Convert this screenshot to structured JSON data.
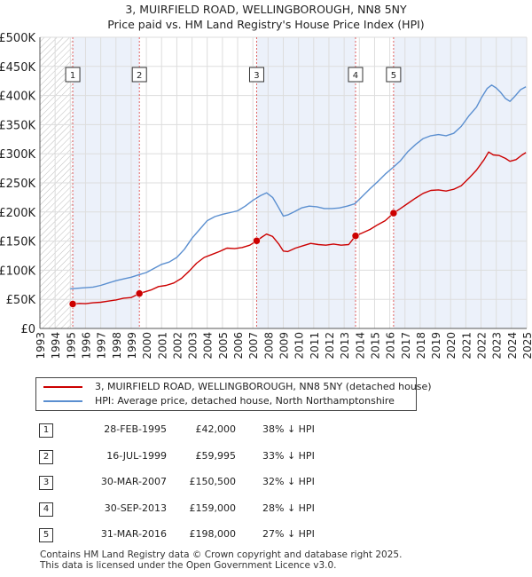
{
  "title": {
    "line1": "3, MUIRFIELD ROAD, WELLINGBOROUGH, NN8 5NY",
    "line2": "Price paid vs. HM Land Registry's House Price Index (HPI)"
  },
  "colors": {
    "property": "#cc0000",
    "hpi": "#5b8fd0",
    "marker_box": "#333333",
    "hatch": "#bbbbbb",
    "band": "#dde6f5"
  },
  "chart_data": {
    "type": "line",
    "title": "Price paid vs. HM Land Registry's House Price Index (HPI)",
    "xlabel": "",
    "ylabel": "",
    "xlim": [
      1993,
      2025
    ],
    "ylim": [
      0,
      500000
    ],
    "yticks": [
      0,
      50000,
      100000,
      150000,
      200000,
      250000,
      300000,
      350000,
      400000,
      450000,
      500000
    ],
    "ytick_labels": [
      "£0",
      "£50K",
      "£100K",
      "£150K",
      "£200K",
      "£250K",
      "£300K",
      "£350K",
      "£400K",
      "£450K",
      "£500K"
    ],
    "xticks": [
      "1993",
      "1994",
      "1995",
      "1996",
      "1997",
      "1998",
      "1999",
      "2000",
      "2001",
      "2002",
      "2003",
      "2004",
      "2005",
      "2006",
      "2007",
      "2008",
      "2009",
      "2010",
      "2011",
      "2012",
      "2013",
      "2014",
      "2015",
      "2016",
      "2017",
      "2018",
      "2019",
      "2020",
      "2021",
      "2022",
      "2023",
      "2024",
      "2025"
    ],
    "grid": true,
    "series": [
      {
        "name": "3, MUIRFIELD ROAD, WELLINGBOROUGH, NN8 5NY (detached house)",
        "x": [
          1995.16,
          1995.6,
          1996.0,
          1996.5,
          1997.0,
          1997.5,
          1998.0,
          1998.5,
          1999.0,
          1999.54,
          1999.8,
          2000.3,
          2000.8,
          2001.3,
          2001.8,
          2002.3,
          2002.8,
          2003.3,
          2003.8,
          2004.3,
          2004.8,
          2005.3,
          2005.8,
          2006.3,
          2006.8,
          2007.25,
          2007.6,
          2007.9,
          2008.3,
          2008.7,
          2009.0,
          2009.3,
          2009.8,
          2010.3,
          2010.8,
          2011.3,
          2011.8,
          2012.3,
          2012.8,
          2013.3,
          2013.75,
          2014.2,
          2014.7,
          2015.2,
          2015.7,
          2016.25,
          2016.7,
          2017.2,
          2017.7,
          2018.2,
          2018.7,
          2019.2,
          2019.7,
          2020.2,
          2020.7,
          2021.2,
          2021.7,
          2022.2,
          2022.5,
          2022.8,
          2023.2,
          2023.6,
          2023.9,
          2024.3,
          2024.7,
          2024.95
        ],
        "values": [
          42000,
          43000,
          42500,
          44000,
          45000,
          47000,
          49000,
          52000,
          53000,
          59995,
          62000,
          66000,
          72000,
          74000,
          78000,
          86000,
          98000,
          112000,
          122000,
          127000,
          132000,
          138000,
          137000,
          139000,
          143000,
          150500,
          157000,
          162000,
          158000,
          145000,
          133000,
          132000,
          138000,
          142000,
          146000,
          144000,
          143000,
          145000,
          143000,
          144000,
          159000,
          164000,
          170000,
          178000,
          185000,
          198000,
          206000,
          215000,
          224000,
          232000,
          237000,
          238000,
          236000,
          239000,
          245000,
          258000,
          272000,
          290000,
          303000,
          298000,
          297000,
          292000,
          287000,
          290000,
          298000,
          302000
        ]
      },
      {
        "name": "HPI: Average price, detached house, North Northamptonshire",
        "x": [
          1995.0,
          1995.5,
          1996.0,
          1996.5,
          1997.0,
          1997.5,
          1998.0,
          1998.5,
          1999.0,
          1999.5,
          2000.0,
          2000.5,
          2001.0,
          2001.5,
          2002.0,
          2002.5,
          2003.0,
          2003.5,
          2004.0,
          2004.5,
          2005.0,
          2005.5,
          2006.0,
          2006.5,
          2007.0,
          2007.5,
          2007.9,
          2008.3,
          2008.7,
          2009.0,
          2009.3,
          2009.7,
          2010.2,
          2010.7,
          2011.2,
          2011.7,
          2012.2,
          2012.7,
          2013.2,
          2013.7,
          2014.2,
          2014.7,
          2015.2,
          2015.7,
          2016.2,
          2016.7,
          2017.2,
          2017.7,
          2018.2,
          2018.7,
          2019.2,
          2019.7,
          2020.2,
          2020.7,
          2021.2,
          2021.7,
          2022.0,
          2022.4,
          2022.7,
          2023.0,
          2023.3,
          2023.6,
          2023.9,
          2024.2,
          2024.6,
          2024.95
        ],
        "values": [
          68000,
          69000,
          70000,
          71000,
          74000,
          78000,
          82000,
          85000,
          88000,
          92000,
          96000,
          103000,
          110000,
          114000,
          122000,
          136000,
          155000,
          170000,
          185000,
          192000,
          196000,
          199000,
          202000,
          210000,
          220000,
          228000,
          233000,
          225000,
          207000,
          193000,
          195000,
          200000,
          207000,
          210000,
          209000,
          206000,
          206000,
          207000,
          210000,
          214000,
          227000,
          240000,
          252000,
          265000,
          276000,
          288000,
          304000,
          316000,
          326000,
          331000,
          333000,
          331000,
          335000,
          347000,
          365000,
          380000,
          395000,
          412000,
          418000,
          413000,
          405000,
          395000,
          390000,
          398000,
          410000,
          415000
        ]
      }
    ],
    "transactions": [
      {
        "n": "1",
        "year": 1995.16,
        "price": 42000
      },
      {
        "n": "2",
        "year": 1999.54,
        "price": 59995
      },
      {
        "n": "3",
        "year": 2007.25,
        "price": 150500
      },
      {
        "n": "4",
        "year": 2013.75,
        "price": 159000
      },
      {
        "n": "5",
        "year": 2016.25,
        "price": 198000
      }
    ]
  },
  "legend": {
    "property": "3, MUIRFIELD ROAD, WELLINGBOROUGH, NN8 5NY (detached house)",
    "hpi": "HPI: Average price, detached house, North Northamptonshire"
  },
  "transactions_table": [
    {
      "n": "1",
      "date": "28-FEB-1995",
      "price": "£42,000",
      "hpi": "38% ↓ HPI"
    },
    {
      "n": "2",
      "date": "16-JUL-1999",
      "price": "£59,995",
      "hpi": "33% ↓ HPI"
    },
    {
      "n": "3",
      "date": "30-MAR-2007",
      "price": "£150,500",
      "hpi": "32% ↓ HPI"
    },
    {
      "n": "4",
      "date": "30-SEP-2013",
      "price": "£159,000",
      "hpi": "28% ↓ HPI"
    },
    {
      "n": "5",
      "date": "31-MAR-2016",
      "price": "£198,000",
      "hpi": "27% ↓ HPI"
    }
  ],
  "footer": {
    "line1": "Contains HM Land Registry data © Crown copyright and database right 2025.",
    "line2": "This data is licensed under the Open Government Licence v3.0."
  }
}
